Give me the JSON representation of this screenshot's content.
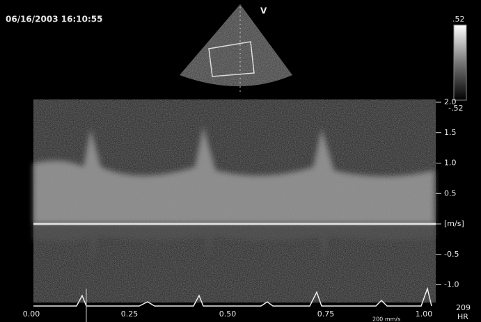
{
  "header": {
    "timestamp": "06/16/2003 16:10:55",
    "probe_marker": "V"
  },
  "gray_scale": {
    "top": ".52",
    "bottom": "-.52"
  },
  "velocity_scale": {
    "labels": [
      "2.0",
      "1.5",
      "1.0",
      "0.5",
      "[m/s]",
      "-0.5",
      "-1.0"
    ]
  },
  "time_scale": {
    "labels": [
      "0.00",
      "0.25",
      "0.50",
      "0.75",
      "1.00"
    ],
    "sweep": "200 mm/s"
  },
  "heart_rate": {
    "value": "209",
    "label": "HR"
  }
}
